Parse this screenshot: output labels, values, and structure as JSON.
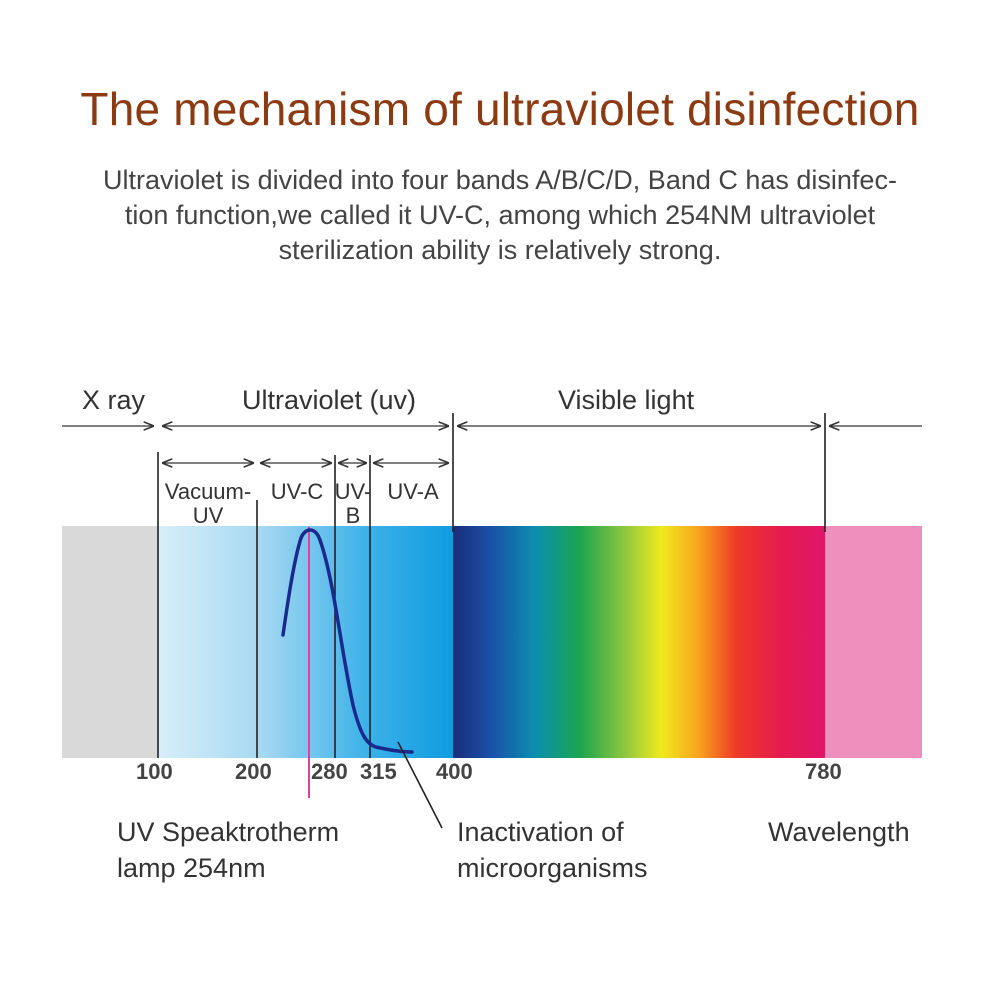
{
  "title": "The mechanism of ultraviolet disinfection",
  "description": {
    "line1": "Ultraviolet is divided into four bands A/B/C/D, Band C has disinfec-",
    "line2": "tion function,we called it UV-C, among which  254NM ultraviolet",
    "line3": "sterilization ability is relatively strong."
  },
  "regions": {
    "xray": "X ray",
    "ultraviolet": "Ultraviolet (uv)",
    "visible": "Visible light"
  },
  "sub_bands": {
    "vacuum_uv_line1": "Vacuum-",
    "vacuum_uv_line2": "UV",
    "uvc": "UV-C",
    "uvb_line1": "UV-",
    "uvb_line2": "B",
    "uva": "UV-A"
  },
  "ticks": [
    "100",
    "200",
    "280",
    "315",
    "400",
    "780"
  ],
  "annotations": {
    "lamp_line1": "UV Speaktrotherm",
    "lamp_line2": "lamp 254nm",
    "inactivation_line1": "Inactivation of",
    "inactivation_line2": "microorganisms",
    "wavelength": "Wavelength"
  },
  "colors": {
    "title": "#8b3a12",
    "xray_band": "#d9d9d9",
    "uv_band": "#1aa0e0",
    "infrared_band": "#ef8fbe",
    "curve": "#1a2a8c",
    "lamp_line": "#e0409a"
  }
}
